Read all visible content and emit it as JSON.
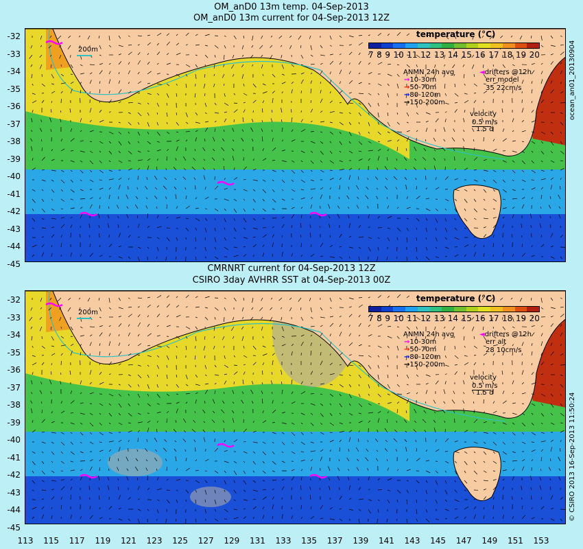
{
  "panels": [
    {
      "title1": "OM_anD0 13m temp. 04-Sep-2013",
      "title2": "OM_anD0 13m current for 04-Sep-2013 12Z",
      "scale_bar": "200m",
      "legend_title": "ANMN 24h avg",
      "drifters": "drifters @12h",
      "err_line1": "err model",
      "err_line2": "35 22cm/s",
      "side_text": "ocean_an01_20130904"
    },
    {
      "title1": "CMRNRT current for 04-Sep-2013 12Z",
      "title2": "CSIRO 3day AVHRR SST at 04-Sep-2013 00Z",
      "scale_bar": "200m",
      "legend_title": "ANMN 24h avg",
      "drifters": "drifters @12h",
      "err_line1": "err alt",
      "err_line2": "28 10cm/s",
      "side_text": "© CSIRO 2013  16-Sep-2013 11:50:24"
    }
  ],
  "depth_bins": [
    "10-30m",
    "50-70m",
    "80-120m",
    "150-200m"
  ],
  "depth_colors": [
    "#ff00ff",
    "#ff2000",
    "#0020ff",
    "#000000"
  ],
  "velocity": {
    "label": "velocity",
    "value": "0.5 m/s",
    "scale": "1.5 d"
  },
  "colorbar": {
    "title": "temperature (°C)",
    "ticks": [
      "7",
      "8",
      "9",
      "10",
      "11",
      "12",
      "13",
      "14",
      "15",
      "16",
      "17",
      "18",
      "19",
      "20"
    ],
    "colors": [
      "#1020a0",
      "#1040d0",
      "#1870f0",
      "#20a0f0",
      "#30c0c0",
      "#30c080",
      "#30b040",
      "#70c030",
      "#b0d020",
      "#e0e020",
      "#f0c020",
      "#f09020",
      "#e05010",
      "#b02010"
    ]
  },
  "lat_ticks": [
    "-32",
    "-33",
    "-34",
    "-35",
    "-36",
    "-37",
    "-38",
    "-39",
    "-40",
    "-41",
    "-42",
    "-43",
    "-44",
    "-45"
  ],
  "lon_ticks": [
    "113",
    "115",
    "117",
    "119",
    "121",
    "123",
    "125",
    "127",
    "129",
    "131",
    "133",
    "135",
    "137",
    "139",
    "141",
    "143",
    "145",
    "147",
    "149",
    "151",
    "153"
  ],
  "colors": {
    "land": "#f7cca3",
    "background": "#bdeff7",
    "cold": "#1a4fd8",
    "cool": "#2aa7e6",
    "mild": "#44c24a",
    "warm": "#e8d82a",
    "hot": "#f0a020",
    "very_hot": "#c03010"
  }
}
